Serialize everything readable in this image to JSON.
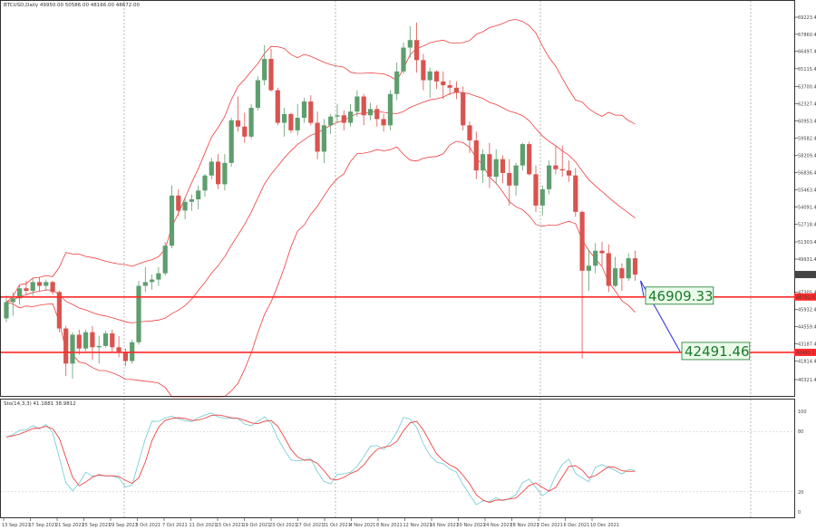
{
  "header": {
    "main_title": "BTCUSD,Daily  49950.00 50586.00 48166.00 48672.00",
    "stoch_title": "Sto(14,3,3) 41.1881 38.9812"
  },
  "price_axis": [
    69223.4,
    67860.4,
    66497.4,
    65115.4,
    63700.4,
    62327.4,
    60953.4,
    59582.4,
    58209.4,
    56836.4,
    55463.4,
    54091.4,
    52718.4,
    51303.4,
    49931.4,
    48672,
    47305.4,
    45932.4,
    44559.4,
    43187.4,
    41814.4,
    40321.4,
    38946.4
  ],
  "stoch_axis": [
    "100",
    "80",
    "20",
    "0"
  ],
  "date_labels": [
    "13 Sep 2021",
    "17 Sep 2021",
    "21 Sep 2021",
    "25 Sep 2021",
    "29 Sep 2021",
    "3 Oct 2021",
    "7 Oct 2021",
    "11 Oct 2021",
    "15 Oct 2021",
    "19 Oct 2021",
    "23 Oct 2021",
    "27 Oct 2021",
    "31 Oct 2021",
    "4 Nov 2021",
    "8 Nov 2021",
    "12 Nov 2021",
    "16 Nov 2021",
    "20 Nov 2021",
    "24 Nov 2021",
    "28 Nov 2021",
    "2 Dec 2021",
    "6 Dec 2021",
    "10 Dec 2021"
  ],
  "annotations": [
    {
      "value": 46909.33,
      "text": "46909.33",
      "badge": "46792.43"
    },
    {
      "value": 42491.46,
      "text": "42491.46",
      "badge": "42491.13"
    }
  ],
  "colors": {
    "bull": "#5e9e6e",
    "bear": "#d9534f",
    "band": "#ef3d3d",
    "level": "#ff2a2a",
    "arrow": "#2222dd",
    "stoch_main": "#7ecfd6",
    "stoch_signal": "#ef4444",
    "grid": "#8a8a8a",
    "ann_text": "#1a7a2a",
    "ann_bg": "#eafbea"
  },
  "chart_data": {
    "type": "candlestick",
    "title": "BTCUSD,Daily",
    "ylim": [
      38946.4,
      69223.4
    ],
    "candles": [
      [
        45200,
        47050,
        44900,
        46500
      ],
      [
        46500,
        47300,
        45400,
        46800
      ],
      [
        46800,
        47900,
        46300,
        47600
      ],
      [
        47600,
        48200,
        47100,
        47400
      ],
      [
        47400,
        48400,
        47000,
        48100
      ],
      [
        48100,
        48500,
        47400,
        47800
      ],
      [
        47800,
        48300,
        47400,
        48100
      ],
      [
        48100,
        48200,
        47100,
        47300
      ],
      [
        47300,
        47400,
        44100,
        44400
      ],
      [
        44400,
        44600,
        40600,
        41600
      ],
      [
        41600,
        44100,
        40400,
        43900
      ],
      [
        43900,
        44300,
        42300,
        42800
      ],
      [
        42800,
        44300,
        42600,
        44100
      ],
      [
        44100,
        44600,
        41900,
        42900
      ],
      [
        42900,
        43800,
        41600,
        43000
      ],
      [
        43000,
        44200,
        42900,
        44000
      ],
      [
        44000,
        44300,
        42500,
        42900
      ],
      [
        42900,
        43800,
        42100,
        42500
      ],
      [
        42500,
        42800,
        41400,
        41800
      ],
      [
        41800,
        43500,
        41600,
        43300
      ],
      [
        43300,
        48200,
        43100,
        47800
      ],
      [
        47800,
        49300,
        47300,
        48100
      ],
      [
        48100,
        48700,
        47500,
        48300
      ],
      [
        48300,
        49300,
        47800,
        48800
      ],
      [
        48800,
        51300,
        48600,
        51000
      ],
      [
        51000,
        55800,
        50800,
        55000
      ],
      [
        55000,
        55500,
        53400,
        53800
      ],
      [
        53800,
        54900,
        53100,
        54500
      ],
      [
        54500,
        55100,
        53800,
        54700
      ],
      [
        54700,
        55800,
        53900,
        55400
      ],
      [
        55400,
        56700,
        54900,
        56600
      ],
      [
        56600,
        58000,
        56300,
        57700
      ],
      [
        57700,
        58300,
        55500,
        55900
      ],
      [
        55900,
        58300,
        55400,
        57600
      ],
      [
        57600,
        61200,
        57300,
        61000
      ],
      [
        61000,
        62900,
        60100,
        60500
      ],
      [
        60500,
        61600,
        59200,
        59700
      ],
      [
        59700,
        62300,
        59500,
        62000
      ],
      [
        62000,
        64500,
        61800,
        64200
      ],
      [
        64200,
        67000,
        63800,
        65900
      ],
      [
        65900,
        66700,
        63300,
        63400
      ],
      [
        63400,
        63600,
        60600,
        60800
      ],
      [
        60800,
        62000,
        59700,
        61500
      ],
      [
        61500,
        61600,
        60000,
        60200
      ],
      [
        60200,
        62300,
        59800,
        61200
      ],
      [
        61200,
        62800,
        60800,
        62500
      ],
      [
        62500,
        63000,
        60600,
        60800
      ],
      [
        60800,
        61700,
        57900,
        58500
      ],
      [
        58500,
        61100,
        57600,
        60600
      ],
      [
        60600,
        61500,
        59900,
        61300
      ],
      [
        61300,
        62300,
        60800,
        61400
      ],
      [
        61400,
        61800,
        60200,
        60800
      ],
      [
        60800,
        62300,
        60500,
        61700
      ],
      [
        61700,
        63400,
        61300,
        62900
      ],
      [
        62900,
        63100,
        60600,
        61400
      ],
      [
        61400,
        62400,
        61000,
        61900
      ],
      [
        61900,
        62200,
        60500,
        61100
      ],
      [
        61100,
        61500,
        60100,
        60600
      ],
      [
        60600,
        63400,
        60200,
        63100
      ],
      [
        63100,
        65600,
        62600,
        64900
      ],
      [
        64900,
        67200,
        64700,
        66800
      ],
      [
        66800,
        68500,
        66000,
        67400
      ],
      [
        67400,
        68800,
        64800,
        65800
      ],
      [
        65800,
        66300,
        63400,
        64200
      ],
      [
        64200,
        65200,
        62800,
        64900
      ],
      [
        64900,
        65000,
        63500,
        64100
      ],
      [
        64100,
        64900,
        62700,
        63800
      ],
      [
        63800,
        64200,
        63000,
        63600
      ],
      [
        63600,
        64100,
        62700,
        63200
      ],
      [
        63200,
        63700,
        60200,
        60600
      ],
      [
        60600,
        60900,
        58400,
        59400
      ],
      [
        59400,
        60100,
        56300,
        57000
      ],
      [
        57000,
        58700,
        56000,
        58300
      ],
      [
        58300,
        59200,
        55600,
        56500
      ],
      [
        56500,
        58700,
        55900,
        57900
      ],
      [
        57900,
        58200,
        56000,
        56800
      ],
      [
        56800,
        57900,
        54200,
        55800
      ],
      [
        55800,
        57600,
        55000,
        57400
      ],
      [
        57400,
        59200,
        57000,
        59100
      ],
      [
        59100,
        59300,
        56600,
        56700
      ],
      [
        56700,
        57400,
        53700,
        54200
      ],
      [
        54200,
        55800,
        53400,
        55500
      ],
      [
        55500,
        57800,
        55100,
        57400
      ],
      [
        57400,
        59000,
        56700,
        57100
      ],
      [
        57100,
        59000,
        56500,
        57000
      ],
      [
        57000,
        57800,
        56100,
        56600
      ],
      [
        56600,
        57200,
        53300,
        53700
      ],
      [
        53700,
        53800,
        42000,
        49000
      ],
      [
        49000,
        50700,
        47400,
        49400
      ],
      [
        49400,
        51200,
        48800,
        50600
      ],
      [
        50600,
        51300,
        49400,
        50400
      ],
      [
        50400,
        51100,
        47300,
        47800
      ],
      [
        47800,
        50100,
        47700,
        49200
      ],
      [
        49200,
        49600,
        47400,
        48400
      ],
      [
        48400,
        50400,
        48200,
        50000
      ],
      [
        50000,
        50600,
        48200,
        48700
      ]
    ]
  }
}
